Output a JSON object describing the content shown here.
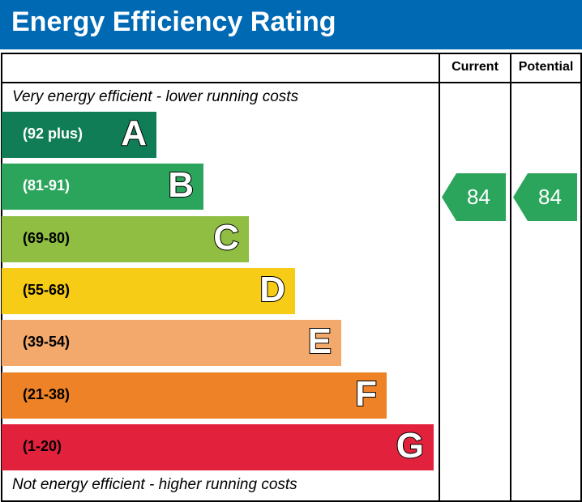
{
  "title": "Energy Efficiency Rating",
  "columns": {
    "current": "Current",
    "potential": "Potential"
  },
  "top_note": "Very energy efficient - lower running costs",
  "bottom_note": "Not energy efficient - higher running costs",
  "chart_data": {
    "type": "bar",
    "bands": [
      {
        "letter": "A",
        "range": "(92 plus)",
        "color": "#107d57",
        "text_color": "#ffffff"
      },
      {
        "letter": "B",
        "range": "(81-91)",
        "color": "#2ca55c",
        "text_color": "#ffffff"
      },
      {
        "letter": "C",
        "range": "(69-80)",
        "color": "#8fbe43",
        "text_color": "#000000"
      },
      {
        "letter": "D",
        "range": "(55-68)",
        "color": "#f6cc17",
        "text_color": "#000000"
      },
      {
        "letter": "E",
        "range": "(39-54)",
        "color": "#f2a96b",
        "text_color": "#000000"
      },
      {
        "letter": "F",
        "range": "(21-38)",
        "color": "#ee8227",
        "text_color": "#000000"
      },
      {
        "letter": "G",
        "range": "(1-20)",
        "color": "#e2213c",
        "text_color": "#000000"
      }
    ],
    "current": {
      "value": "84",
      "band": "B",
      "color": "#2ca55c"
    },
    "potential": {
      "value": "84",
      "band": "B",
      "color": "#2ca55c"
    }
  }
}
